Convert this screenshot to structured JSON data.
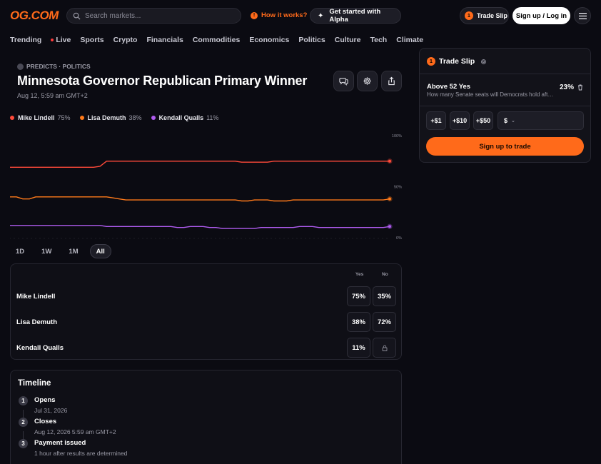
{
  "header": {
    "logo": "OG.COM",
    "search_placeholder": "Search markets...",
    "how_it_works": "How it works?",
    "alpha_button": "Get started with Alpha",
    "trade_slip_count": "1",
    "trade_slip_label": "Trade Slip",
    "signup_label": "Sign up / Log in"
  },
  "nav": [
    "Trending",
    "Live",
    "Sports",
    "Crypto",
    "Financials",
    "Commodities",
    "Economics",
    "Politics",
    "Culture",
    "Tech",
    "Climate"
  ],
  "market": {
    "category": "PREDICTS · POLITICS",
    "title": "Minnesota Governor Republican Primary Winner",
    "date": "Aug 12, 5:59 am GMT+2"
  },
  "legend": [
    {
      "name": "Mike Lindell",
      "pct": "75%",
      "color": "#ff4a3a"
    },
    {
      "name": "Lisa Demuth",
      "pct": "38%",
      "color": "#ff7a1a"
    },
    {
      "name": "Kendall Qualls",
      "pct": "11%",
      "color": "#b05cf0"
    }
  ],
  "chart_data": {
    "type": "line",
    "y_ticks": [
      "100%",
      "50%",
      "0%"
    ],
    "ylim": [
      0,
      100
    ],
    "series": [
      {
        "name": "Mike Lindell",
        "color": "#ff4a3a",
        "values": [
          69,
          69,
          69,
          69,
          69,
          69,
          69,
          69,
          69,
          69,
          69,
          69,
          69,
          69,
          70,
          75,
          75,
          75,
          75,
          75,
          75,
          75,
          75,
          75,
          75,
          75,
          75,
          75,
          75,
          75,
          75,
          75,
          75,
          75,
          75,
          75,
          74,
          74,
          74,
          74,
          74,
          75,
          75,
          75,
          75,
          75,
          75,
          75,
          75,
          75,
          75,
          75,
          75,
          75,
          75,
          75,
          75,
          75,
          75,
          75
        ]
      },
      {
        "name": "Lisa Demuth",
        "color": "#ff7a1a",
        "values": [
          40,
          40,
          38,
          38,
          40,
          40,
          40,
          40,
          40,
          40,
          40,
          40,
          40,
          40,
          40,
          40,
          39,
          38,
          37,
          37,
          37,
          37,
          37,
          37,
          37,
          37,
          37,
          37,
          37,
          37,
          37,
          37,
          37,
          37,
          37,
          37,
          36,
          36,
          37,
          37,
          37,
          36,
          36,
          36,
          37,
          37,
          37,
          37,
          37,
          37,
          37,
          37,
          37,
          37,
          37,
          37,
          37,
          37,
          37,
          38
        ]
      },
      {
        "name": "Kendall Qualls",
        "color": "#b05cf0",
        "values": [
          12,
          12,
          12,
          12,
          12,
          12,
          12,
          12,
          12,
          12,
          12,
          12,
          12,
          12,
          12,
          11,
          11,
          11,
          11,
          11,
          11,
          11,
          11,
          11,
          11,
          11,
          10,
          10,
          11,
          11,
          11,
          10,
          10,
          9,
          9,
          9,
          9,
          9,
          9,
          10,
          10,
          10,
          10,
          10,
          10,
          11,
          11,
          11,
          10,
          10,
          10,
          10,
          10,
          10,
          10,
          10,
          10,
          10,
          10,
          11
        ]
      }
    ]
  },
  "ranges": [
    "1D",
    "1W",
    "1M",
    "All"
  ],
  "outcomes": {
    "col_yes": "Yes",
    "col_no": "No",
    "rows": [
      {
        "name": "Mike Lindell",
        "yes": "75%",
        "no": "35%"
      },
      {
        "name": "Lisa Demuth",
        "yes": "38%",
        "no": "72%"
      },
      {
        "name": "Kendall Qualls",
        "yes": "11%",
        "no": ""
      }
    ]
  },
  "timeline": {
    "title": "Timeline",
    "steps": [
      {
        "num": "1",
        "label": "Opens",
        "date": "Jul 31, 2026"
      },
      {
        "num": "2",
        "label": "Closes",
        "date": "Aug 12, 2026 5:59 am GMT+2"
      },
      {
        "num": "3",
        "label": "Payment issued",
        "date": "1 hour after results are determined"
      }
    ]
  },
  "slip": {
    "count": "1",
    "title": "Trade Slip",
    "outcome": "Above 52 Yes",
    "question": "How many Senate seats will Democrats hold after the election",
    "pct": "23%",
    "amounts": [
      "+$1",
      "+$10",
      "+$50"
    ],
    "currency": "$",
    "trade_button": "Sign up to trade"
  },
  "colors": {
    "accent": "#ff6a1a",
    "background": "#0b0b12"
  }
}
